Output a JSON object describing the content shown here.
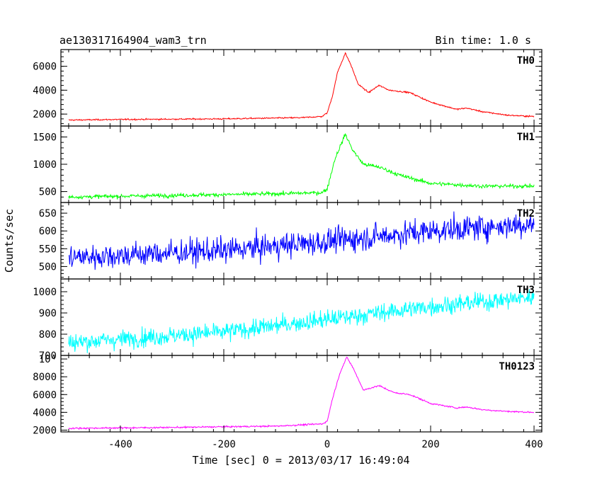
{
  "header": {
    "title": "ae130317164904_wam3_trn",
    "bin_time": "Bin time: 1.0 s"
  },
  "chart_data": {
    "type": "line",
    "title": "ae130317164904_wam3_trn",
    "xlabel": "Time [sec] 0 = 2013/03/17 16:49:04",
    "ylabel": "Counts/sec",
    "xlim": [
      -515,
      415
    ],
    "x_ticks": [
      -400,
      -200,
      0,
      200,
      400
    ],
    "x_tick_labels": [
      "-400",
      "-200",
      "0",
      "200",
      "400"
    ],
    "bin_time_s": 1.0,
    "x_range_data": [
      -500,
      400
    ],
    "panels": [
      {
        "name": "TH0",
        "color": "#ff0000",
        "ylim": [
          1000,
          7400
        ],
        "y_ticks": [
          2000,
          4000,
          6000
        ],
        "y_tick_labels": [
          "2000",
          "4000",
          "6000"
        ],
        "noise": 40,
        "profile": [
          [
            -500,
            1500
          ],
          [
            -400,
            1550
          ],
          [
            -200,
            1600
          ],
          [
            -50,
            1700
          ],
          [
            -10,
            1800
          ],
          [
            0,
            2100
          ],
          [
            10,
            3500
          ],
          [
            20,
            5500
          ],
          [
            35,
            7100
          ],
          [
            45,
            6200
          ],
          [
            60,
            4500
          ],
          [
            80,
            3800
          ],
          [
            100,
            4400
          ],
          [
            120,
            4000
          ],
          [
            160,
            3800
          ],
          [
            200,
            3000
          ],
          [
            250,
            2400
          ],
          [
            270,
            2500
          ],
          [
            300,
            2200
          ],
          [
            350,
            1900
          ],
          [
            400,
            1800
          ]
        ]
      },
      {
        "name": "TH1",
        "color": "#00ff00",
        "ylim": [
          300,
          1700
        ],
        "y_ticks": [
          500,
          1000,
          1500
        ],
        "y_tick_labels": [
          "500",
          "1000",
          "1500"
        ],
        "noise": 25,
        "profile": [
          [
            -500,
            400
          ],
          [
            -300,
            430
          ],
          [
            -100,
            460
          ],
          [
            -10,
            480
          ],
          [
            0,
            550
          ],
          [
            15,
            1100
          ],
          [
            35,
            1550
          ],
          [
            50,
            1250
          ],
          [
            70,
            1000
          ],
          [
            100,
            950
          ],
          [
            140,
            800
          ],
          [
            200,
            650
          ],
          [
            300,
            600
          ],
          [
            400,
            600
          ]
        ]
      },
      {
        "name": "TH2",
        "color": "#0000ff",
        "ylim": [
          465,
          680
        ],
        "y_ticks": [
          500,
          550,
          600,
          650
        ],
        "y_tick_labels": [
          "500",
          "550",
          "600",
          "650"
        ],
        "noise": 25,
        "profile": [
          [
            -500,
            525
          ],
          [
            -200,
            545
          ],
          [
            0,
            570
          ],
          [
            200,
            600
          ],
          [
            400,
            620
          ]
        ]
      },
      {
        "name": "TH3",
        "color": "#00ffff",
        "ylim": [
          700,
          1060
        ],
        "y_ticks": [
          700,
          800,
          900,
          1000
        ],
        "y_tick_labels": [
          "700",
          "800",
          "900",
          "1000"
        ],
        "noise": 30,
        "profile": [
          [
            -500,
            760
          ],
          [
            -200,
            810
          ],
          [
            0,
            870
          ],
          [
            200,
            930
          ],
          [
            400,
            975
          ]
        ]
      },
      {
        "name": "TH0123",
        "color": "#ff00ff",
        "ylim": [
          1800,
          10400
        ],
        "y_ticks": [
          2000,
          4000,
          6000,
          8000,
          10000
        ],
        "y_tick_labels": [
          "2000",
          "4000",
          "6000",
          "8000",
          "10⁴"
        ],
        "noise": 60,
        "profile": [
          [
            -500,
            2200
          ],
          [
            -300,
            2300
          ],
          [
            -100,
            2450
          ],
          [
            -10,
            2700
          ],
          [
            0,
            3000
          ],
          [
            10,
            5500
          ],
          [
            25,
            8500
          ],
          [
            38,
            10200
          ],
          [
            50,
            9000
          ],
          [
            70,
            6500
          ],
          [
            100,
            7000
          ],
          [
            130,
            6200
          ],
          [
            160,
            6000
          ],
          [
            200,
            5000
          ],
          [
            250,
            4500
          ],
          [
            270,
            4600
          ],
          [
            300,
            4300
          ],
          [
            350,
            4100
          ],
          [
            400,
            4000
          ]
        ]
      }
    ]
  }
}
